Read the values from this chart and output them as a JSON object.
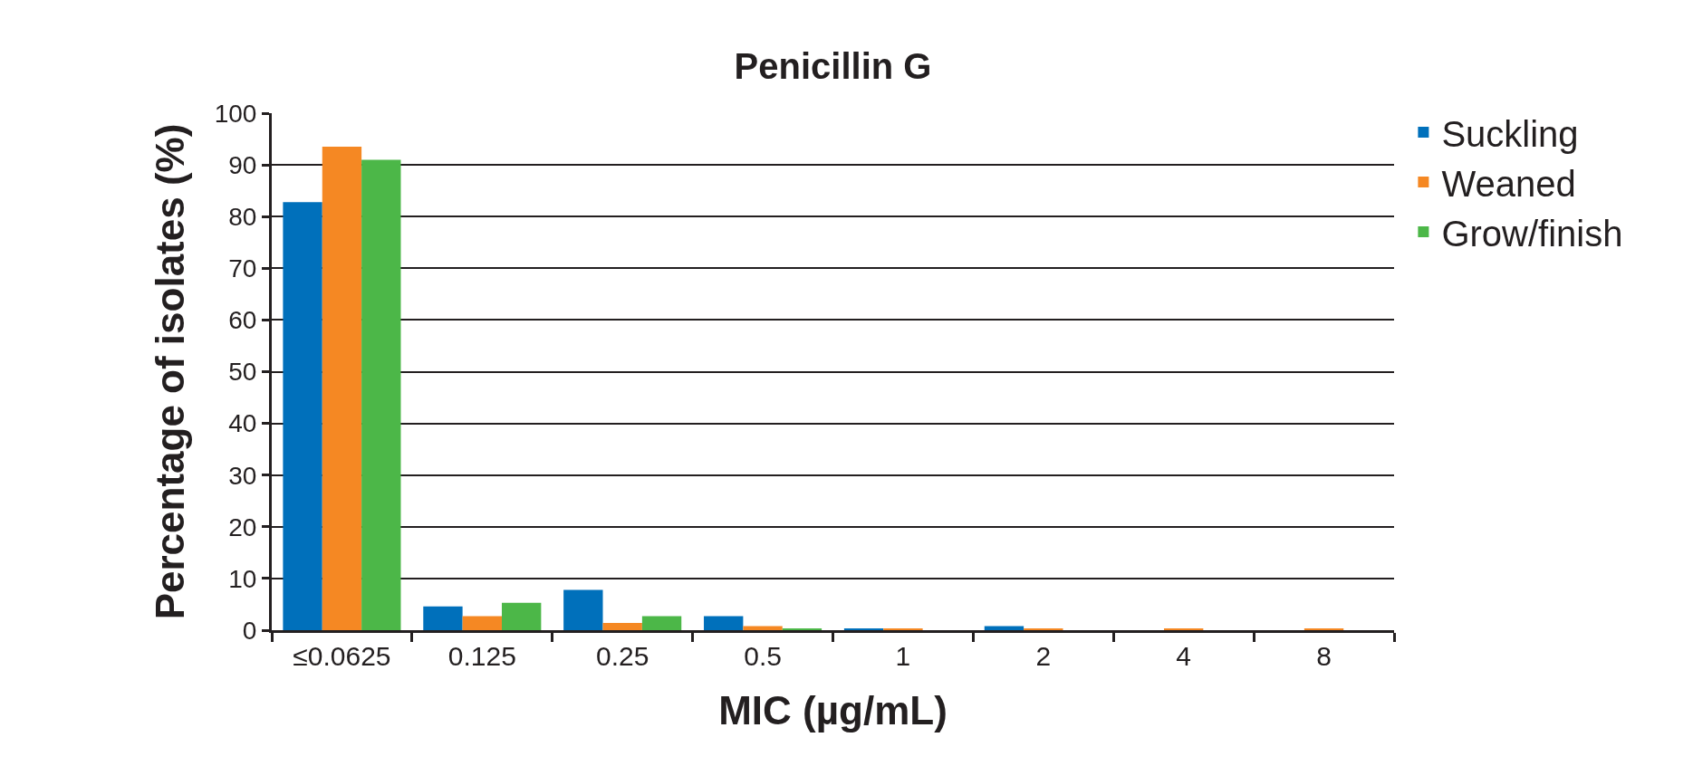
{
  "chart_data": {
    "type": "bar",
    "title": "Penicillin G",
    "xlabel": "MIC (µg/mL)",
    "ylabel": "Percentage of isolates (%)",
    "categories": [
      "≤0.0625",
      "0.125",
      "0.25",
      "0.5",
      "1",
      "2",
      "4",
      "8"
    ],
    "series": [
      {
        "name": "Suckling",
        "color": "#0070bb",
        "values": [
          82.8,
          4.6,
          7.8,
          2.7,
          0.2,
          0.8,
          0,
          0
        ]
      },
      {
        "name": "Weaned",
        "color": "#f58823",
        "values": [
          93.5,
          2.7,
          1.4,
          0.8,
          0.2,
          0.2,
          0.2,
          0.2
        ]
      },
      {
        "name": "Grow/finish",
        "color": "#4cb748",
        "values": [
          91,
          5.3,
          2.7,
          0.2,
          0,
          0,
          0,
          0
        ]
      }
    ],
    "ylim": [
      0,
      100
    ],
    "yticks": [
      0,
      10,
      20,
      30,
      40,
      50,
      60,
      70,
      80,
      90,
      100
    ],
    "grid": "y",
    "legend": "top right"
  }
}
